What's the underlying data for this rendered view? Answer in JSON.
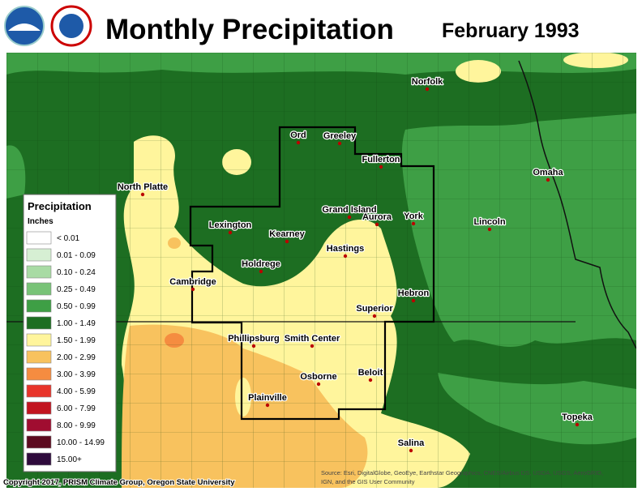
{
  "header": {
    "title": "Monthly Precipitation",
    "period": "February 1993"
  },
  "legend": {
    "title": "Precipitation",
    "units": "Inches",
    "items": [
      {
        "label": "< 0.01",
        "color": "#ffffff"
      },
      {
        "label": "0.01 - 0.09",
        "color": "#d6efd3"
      },
      {
        "label": "0.10 - 0.24",
        "color": "#a8dba4"
      },
      {
        "label": "0.25 - 0.49",
        "color": "#78c377"
      },
      {
        "label": "0.50 - 0.99",
        "color": "#3e9f45"
      },
      {
        "label": "1.00 - 1.49",
        "color": "#1d6e22"
      },
      {
        "label": "1.50 - 1.99",
        "color": "#fff59c"
      },
      {
        "label": "2.00 - 2.99",
        "color": "#f8c25e"
      },
      {
        "label": "3.00 - 3.99",
        "color": "#f58c40"
      },
      {
        "label": "4.00 - 5.99",
        "color": "#e8342a"
      },
      {
        "label": "6.00 - 7.99",
        "color": "#c2141f"
      },
      {
        "label": "8.00 - 9.99",
        "color": "#a00d30"
      },
      {
        "label": "10.00 - 14.99",
        "color": "#5c0a1f"
      },
      {
        "label": "15.00+",
        "color": "#2e0a3c"
      }
    ]
  },
  "cities": [
    "Norfolk",
    "Ord",
    "Greeley",
    "Fullerton",
    "North Platte",
    "Omaha",
    "Grand Island",
    "Aurora",
    "York",
    "Lincoln",
    "Lexington",
    "Kearney",
    "Hastings",
    "Holdrege",
    "Cambridge",
    "Hebron",
    "Superior",
    "Phillipsburg",
    "Smith Center",
    "Beloit",
    "Osborne",
    "Plainville",
    "Topeka",
    "Salina"
  ],
  "footer": {
    "copyright": "Copyright 2017, PRISM Climate Group, Oregon State University",
    "source": [
      "Source: Esri, DigitalGlobe, GeoEye, Earthstar Geographics, CNES/Airbus DS, USDA, USGS, AeroGRID,",
      "IGN, and the GIS User Community"
    ]
  }
}
